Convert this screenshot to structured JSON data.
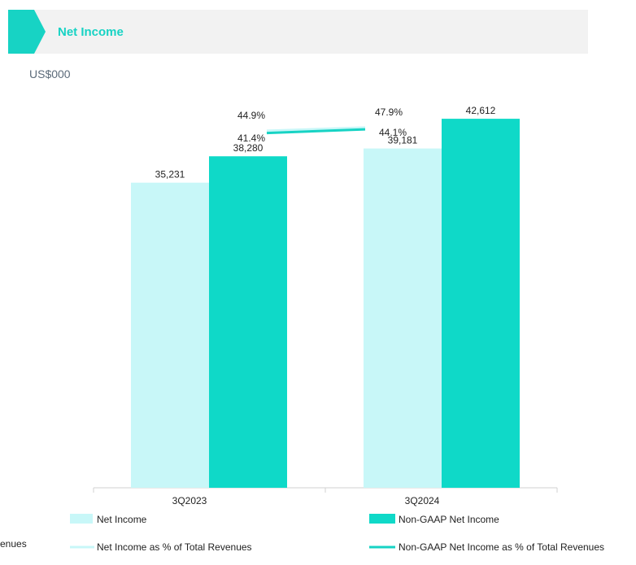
{
  "header": {
    "title": "Net Income"
  },
  "unit": "US$000",
  "colors": {
    "accent": "#17d3c4",
    "light": "#c8f7f8",
    "dark": "#0fd9c8"
  },
  "cut_text": "enues",
  "chart_data": {
    "type": "bar",
    "title": "Net Income",
    "ylabel": "US$000",
    "categories": [
      "3Q2023",
      "3Q2024"
    ],
    "ylim": [
      0,
      46000
    ],
    "series": [
      {
        "name": "Net Income",
        "values": [
          35231,
          39181
        ],
        "labels": [
          "35,231",
          "39,181"
        ]
      },
      {
        "name": "Non-GAAP Net Income",
        "values": [
          38280,
          42612
        ],
        "labels": [
          "38,280",
          "42,612"
        ]
      }
    ],
    "lines": [
      {
        "name": "Net Income as % of Total Revenues",
        "values": [
          41.4,
          44.1
        ],
        "labels": [
          "41.4%",
          "44.1%"
        ]
      },
      {
        "name": "Non-GAAP Net Income as % of Total Revenues",
        "values": [
          44.9,
          47.9
        ],
        "labels": [
          "44.9%",
          "47.9%"
        ]
      }
    ],
    "legend": [
      "Net Income",
      "Non-GAAP Net Income",
      "Net Income as % of Total Revenues",
      "Non-GAAP Net Income as % of Total Revenues"
    ]
  }
}
